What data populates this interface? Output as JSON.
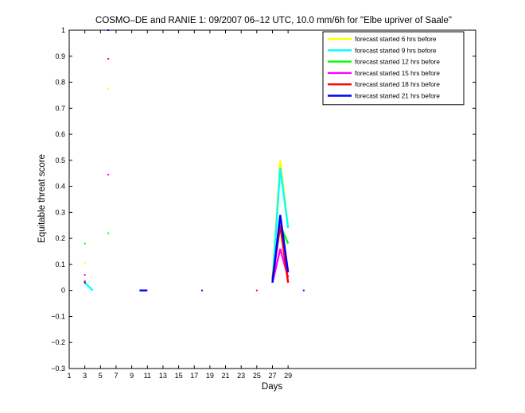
{
  "chart_data": {
    "type": "line",
    "title": "COSMO–DE and RANIE 1: 09/2007 06–12 UTC, 10.0 mm/6h for \"Elbe upriver of Saale\"",
    "xlabel": "Days",
    "ylabel": "Equitable threat score",
    "xlim": [
      1,
      53
    ],
    "ylim": [
      -0.3,
      1
    ],
    "xticks": [
      1,
      3,
      5,
      7,
      9,
      11,
      13,
      15,
      17,
      19,
      21,
      23,
      25,
      27,
      29
    ],
    "xtick_labels": [
      "1",
      "3",
      "5",
      "7",
      "9",
      "11",
      "13",
      "15",
      "17",
      "19",
      "21",
      "23",
      "25",
      "27",
      "29"
    ],
    "yticks": [
      -0.3,
      -0.2,
      -0.1,
      0,
      0.1,
      0.2,
      0.3,
      0.4,
      0.5,
      0.6,
      0.7,
      0.8,
      0.9,
      1
    ],
    "ytick_labels": [
      "−0.3",
      "−0.2",
      "−0.1",
      "0",
      "0.1",
      "0.2",
      "0.3",
      "0.4",
      "0.5",
      "0.6",
      "0.7",
      "0.8",
      "0.9",
      "1"
    ],
    "grid": false,
    "legend_position": "top-right",
    "series": [
      {
        "name": "forecast started 6 hrs before",
        "color": "#ffff00",
        "segments": [
          [
            [
              3,
              0.105
            ]
          ],
          [
            [
              6,
              0.775
            ]
          ],
          [
            [
              27,
              0.04
            ],
            [
              28,
              0.5
            ],
            [
              29,
              0.24
            ]
          ]
        ]
      },
      {
        "name": "forecast started 9 hrs before",
        "color": "#00ffff",
        "segments": [
          [
            [
              3,
              0.03
            ],
            [
              4,
              0.0
            ]
          ],
          [
            [
              27,
              0.03
            ],
            [
              28,
              0.47
            ],
            [
              29,
              0.24
            ]
          ]
        ]
      },
      {
        "name": "forecast started 12 hrs before",
        "color": "#00ff00",
        "segments": [
          [
            [
              3,
              0.18
            ]
          ],
          [
            [
              6,
              0.22
            ]
          ],
          [
            [
              27,
              0.05
            ],
            [
              28,
              0.25
            ],
            [
              29,
              0.18
            ]
          ]
        ]
      },
      {
        "name": "forecast started 15 hrs before",
        "color": "#ff00ff",
        "segments": [
          [
            [
              3,
              0.06
            ]
          ],
          [
            [
              6,
              0.445
            ]
          ],
          [
            [
              27,
              0.03
            ],
            [
              28,
              0.16
            ],
            [
              29,
              0.05
            ]
          ]
        ]
      },
      {
        "name": "forecast started 18 hrs before",
        "color": "#ff0000",
        "segments": [
          [
            [
              3,
              0.035
            ]
          ],
          [
            [
              6,
              0.89
            ]
          ],
          [
            [
              25,
              0.0
            ]
          ],
          [
            [
              27,
              0.04
            ],
            [
              28,
              0.25
            ],
            [
              29,
              0.03
            ]
          ]
        ]
      },
      {
        "name": "forecast started 21 hrs before",
        "color": "#0000ff",
        "segments": [
          [
            [
              3,
              0.03
            ]
          ],
          [
            [
              6,
              1.0
            ]
          ],
          [
            [
              10,
              0.0
            ],
            [
              11,
              0.0
            ]
          ],
          [
            [
              18,
              0.0
            ]
          ],
          [
            [
              27,
              0.03
            ],
            [
              28,
              0.29
            ],
            [
              29,
              0.07
            ]
          ],
          [
            [
              31,
              0.0
            ]
          ]
        ]
      }
    ]
  }
}
